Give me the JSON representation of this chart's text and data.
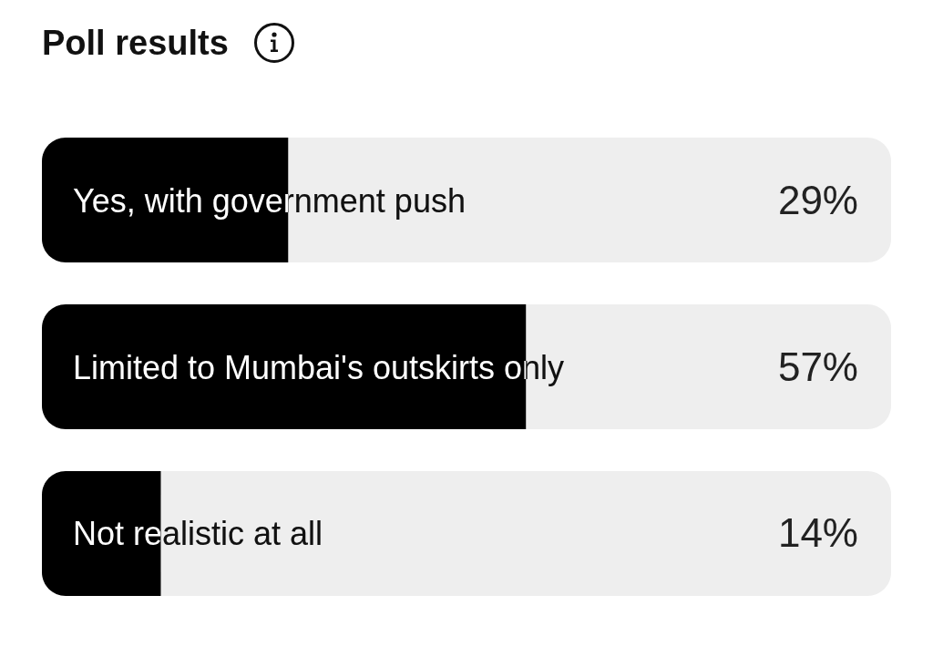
{
  "chart_data": {
    "type": "bar",
    "orientation": "horizontal",
    "title": "Poll results",
    "categories": [
      "Yes, with government push",
      "Limited to Mumbai's outskirts only",
      "Not realistic at all"
    ],
    "values": [
      29,
      57,
      14
    ],
    "value_labels": [
      "29%",
      "57%",
      "14%"
    ],
    "color": "#000000",
    "xlim": [
      0,
      100
    ],
    "tick_labels": false
  }
}
